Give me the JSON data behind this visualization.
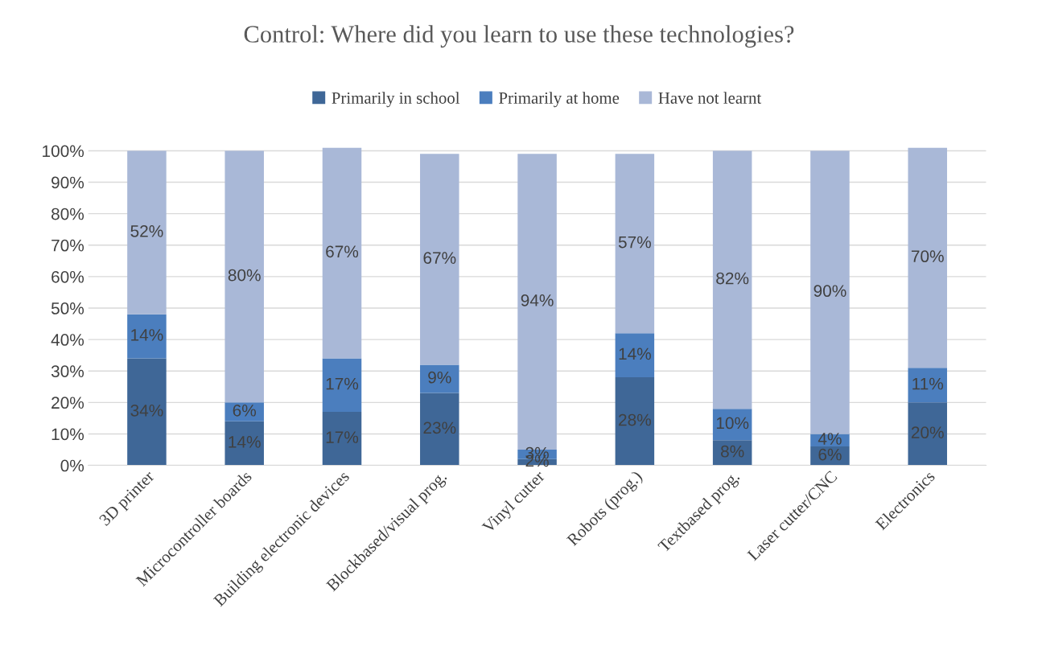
{
  "chart_data": {
    "type": "bar",
    "stacked": true,
    "title": "Control: Where did you learn to use these technologies?",
    "categories": [
      "3D printer",
      "Microcontroller boards",
      "Building electronic devices",
      "Blockbased/visual prog.",
      "Vinyl cutter",
      "Robots (prog.)",
      "Textbased prog.",
      "Laser cutter/CNC",
      "Electronics"
    ],
    "series": [
      {
        "name": "Primarily in school",
        "color": "#3f6797",
        "values": [
          34,
          14,
          17,
          23,
          2,
          28,
          8,
          6,
          20
        ],
        "value_labels": [
          "34%",
          "14%",
          "17%",
          "23%",
          "2%",
          "28%",
          "8%",
          "6%",
          "20%"
        ]
      },
      {
        "name": "Primarily at home",
        "color": "#4b7ebe",
        "values": [
          14,
          6,
          17,
          9,
          3,
          14,
          10,
          4,
          11
        ],
        "value_labels": [
          "14%",
          "6%",
          "17%",
          "9%",
          "3%",
          "14%",
          "10%",
          "4%",
          "11%"
        ]
      },
      {
        "name": "Have not learnt",
        "color": "#a9b8d7",
        "values": [
          52,
          80,
          67,
          67,
          94,
          57,
          82,
          90,
          70
        ],
        "value_labels": [
          "52%",
          "80%",
          "67%",
          "67%",
          "94%",
          "57%",
          "82%",
          "90%",
          "70%"
        ]
      }
    ],
    "ylim": [
      0,
      101
    ],
    "yticks": [
      {
        "value": 0,
        "label": "0%"
      },
      {
        "value": 10,
        "label": "10%"
      },
      {
        "value": 20,
        "label": "20%"
      },
      {
        "value": 30,
        "label": "30%"
      },
      {
        "value": 40,
        "label": "40%"
      },
      {
        "value": 50,
        "label": "50%"
      },
      {
        "value": 60,
        "label": "60%"
      },
      {
        "value": 70,
        "label": "70%"
      },
      {
        "value": 80,
        "label": "80%"
      },
      {
        "value": 90,
        "label": "90%"
      },
      {
        "value": 100,
        "label": "100%"
      }
    ],
    "grid": "y",
    "legend": "top"
  }
}
